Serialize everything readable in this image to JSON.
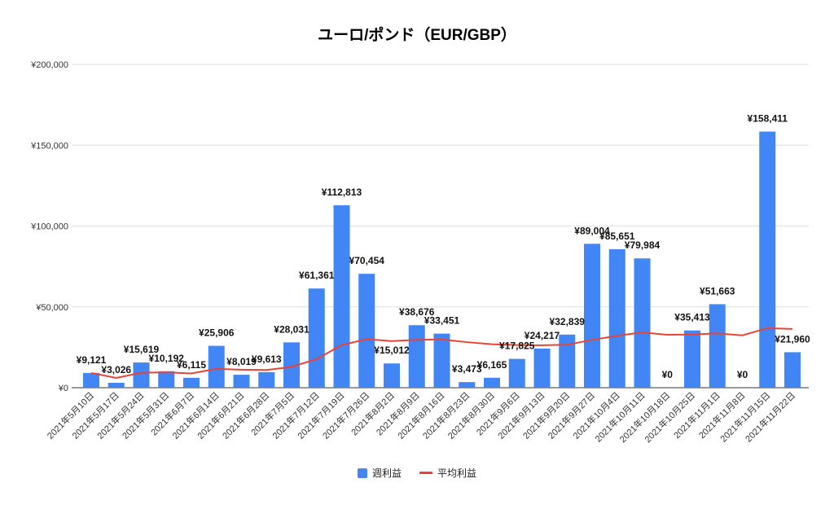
{
  "chart_data": {
    "type": "bar",
    "title": "ユーロ/ポンド（EUR/GBP）",
    "xlabel": "",
    "ylabel": "",
    "ylim": [
      0,
      200000
    ],
    "yticks": [
      "¥0",
      "¥50,000",
      "¥100,000",
      "¥150,000",
      "¥200,000"
    ],
    "grid": true,
    "legend_position": "bottom",
    "categories": [
      "2021年5月10日",
      "2021年5月17日",
      "2021年5月24日",
      "2021年5月31日",
      "2021年6月7日",
      "2021年6月14日",
      "2021年6月21日",
      "2021年6月28日",
      "2021年7月5日",
      "2021年7月12日",
      "2021年7月19日",
      "2021年7月26日",
      "2021年8月2日",
      "2021年8月9日",
      "2021年8月16日",
      "2021年8月23日",
      "2021年8月30日",
      "2021年9月6日",
      "2021年9月13日",
      "2021年9月20日",
      "2021年9月27日",
      "2021年10月4日",
      "2021年10月11日",
      "2021年10月18日",
      "2021年10月25日",
      "2021年11月1日",
      "2021年11月8日",
      "2021年11月15日",
      "2021年11月22日"
    ],
    "series": [
      {
        "name": "週利益",
        "type": "bar",
        "color": "#4285f4",
        "values": [
          9121,
          3026,
          15619,
          10192,
          6115,
          25906,
          8019,
          9613,
          28031,
          61361,
          112813,
          70454,
          15012,
          38676,
          33451,
          3473,
          6165,
          17825,
          24217,
          32839,
          89004,
          85651,
          79984,
          0,
          35413,
          51663,
          0,
          158411,
          21960
        ],
        "labels": [
          "¥9,121",
          "¥3,026",
          "¥15,619",
          "¥10,192",
          "¥6,115",
          "¥25,906",
          "¥8,019",
          "¥9,613",
          "¥28,031",
          "¥61,361",
          "¥112,813",
          "¥70,454",
          "¥15,012",
          "¥38,676",
          "¥33,451",
          "¥3,473",
          "¥6,165",
          "¥17,825",
          "¥24,217",
          "¥32,839",
          "¥89,004",
          "¥85,651",
          "¥79,984",
          "¥0",
          "¥35,413",
          "¥51,663",
          "¥0",
          "¥158,411",
          "¥21,960"
        ]
      },
      {
        "name": "平均利益",
        "type": "line",
        "color": "#ea4335",
        "values": [
          9121,
          6074,
          9255,
          9490,
          8815,
          11663,
          11143,
          10951,
          12849,
          17700,
          26347,
          30023,
          28868,
          29568,
          29827,
          28180,
          26885,
          26382,
          26268,
          26596,
          29568,
          32117,
          34198,
          32774,
          32879,
          33602,
          32357,
          36859,
          36345
        ]
      }
    ]
  }
}
